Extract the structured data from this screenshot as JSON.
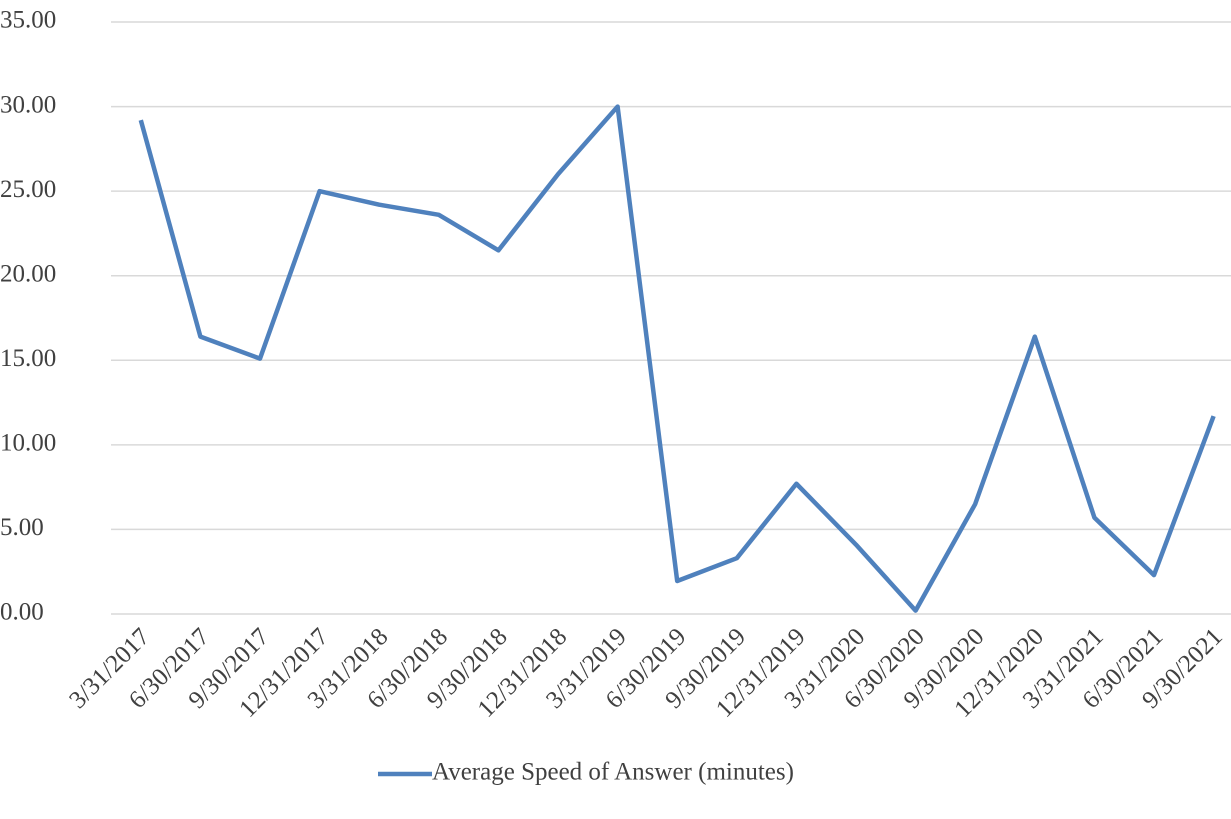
{
  "chart_data": {
    "type": "line",
    "categories": [
      "3/31/2017",
      "6/30/2017",
      "9/30/2017",
      "12/31/2017",
      "3/31/2018",
      "6/30/2018",
      "9/30/2018",
      "12/31/2018",
      "3/31/2019",
      "6/30/2019",
      "9/30/2019",
      "12/31/2019",
      "3/31/2020",
      "6/30/2020",
      "9/30/2020",
      "12/31/2020",
      "3/31/2021",
      "6/30/2021",
      "9/30/2021"
    ],
    "series": [
      {
        "name": "Average Speed of Answer (minutes)",
        "color": "#4f81bd",
        "values": [
          29.2,
          16.4,
          15.1,
          25.0,
          24.2,
          23.6,
          21.5,
          26.0,
          30.0,
          1.95,
          3.3,
          7.7,
          4.1,
          0.2,
          6.5,
          16.4,
          5.7,
          2.3,
          11.7
        ]
      }
    ],
    "ylim": [
      0,
      35
    ],
    "yticks": [
      {
        "value": 0,
        "label": "0.00"
      },
      {
        "value": 5,
        "label": "5.00"
      },
      {
        "value": 10,
        "label": "10.00"
      },
      {
        "value": 15,
        "label": "15.00"
      },
      {
        "value": 20,
        "label": "20.00"
      },
      {
        "value": 25,
        "label": "25.00"
      },
      {
        "value": 30,
        "label": "30.00"
      },
      {
        "value": 35,
        "label": "35.00"
      }
    ],
    "grid": true,
    "legend": "bottom"
  }
}
